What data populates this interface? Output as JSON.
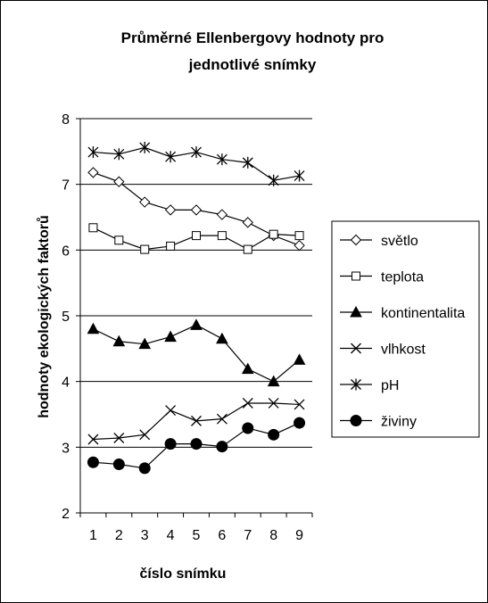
{
  "chart_data": {
    "type": "line",
    "title_line1": "Průměrné Ellenbergovy hodnoty pro",
    "title_line2": "jednotlivé snímky",
    "xlabel": "číslo snímku",
    "ylabel": "hodnoty ekologických faktorů",
    "x": [
      1,
      2,
      3,
      4,
      5,
      6,
      7,
      8,
      9
    ],
    "ylim": [
      2,
      8
    ],
    "yticks": [
      2,
      3,
      4,
      5,
      6,
      7,
      8
    ],
    "grid": "horizontal",
    "legend_position": "right",
    "series": [
      {
        "name": "světlo",
        "marker": "diamond-open",
        "values": [
          7.18,
          7.04,
          6.73,
          6.61,
          6.61,
          6.54,
          6.42,
          6.22,
          6.07
        ]
      },
      {
        "name": "teplota",
        "marker": "square-open",
        "values": [
          6.34,
          6.15,
          6.01,
          6.06,
          6.22,
          6.22,
          6.01,
          6.24,
          6.22
        ]
      },
      {
        "name": "kontinentalita",
        "marker": "triangle-filled",
        "values": [
          4.8,
          4.61,
          4.57,
          4.68,
          4.86,
          4.65,
          4.19,
          4.0,
          4.33
        ]
      },
      {
        "name": "vlhkost",
        "marker": "x",
        "values": [
          3.12,
          3.14,
          3.19,
          3.56,
          3.4,
          3.43,
          3.67,
          3.67,
          3.65
        ]
      },
      {
        "name": "pH",
        "marker": "asterisk",
        "values": [
          7.49,
          7.46,
          7.56,
          7.42,
          7.49,
          7.38,
          7.33,
          7.06,
          7.13
        ]
      },
      {
        "name": "živiny",
        "marker": "circle-filled",
        "values": [
          2.77,
          2.74,
          2.68,
          3.05,
          3.05,
          3.01,
          3.29,
          3.19,
          3.37
        ]
      }
    ]
  }
}
